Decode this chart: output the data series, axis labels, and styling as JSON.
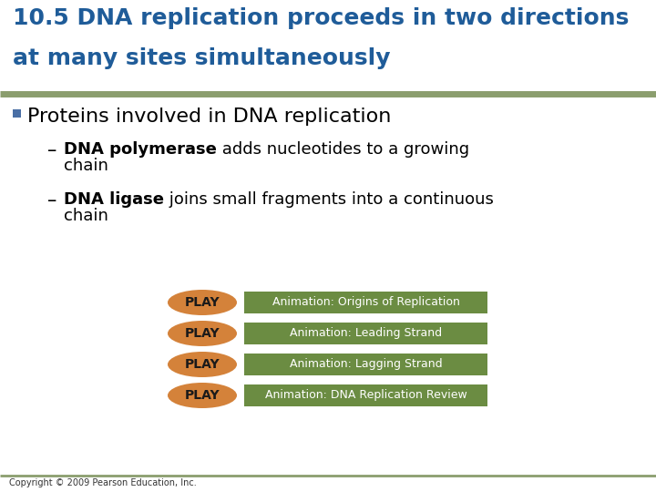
{
  "title_line1": "10.5 DNA replication proceeds in two directions",
  "title_line2": "at many sites simultaneously",
  "title_color": "#1F5C99",
  "title_fontsize": 18,
  "title_bg_color": "#FFFFFF",
  "separator_color": "#8B9E6E",
  "bg_color": "#FFFFFF",
  "bullet_color": "#4A6FA5",
  "bullet_text": "Proteins involved in DNA replication",
  "bullet_fontsize": 16,
  "sub1_bold": "DNA polymerase",
  "sub1_normal": " adds nucleotides to a growing",
  "sub1_line2": "chain",
  "sub2_bold": "DNA ligase",
  "sub2_normal": " joins small fragments into a continuous",
  "sub2_line2": "chain",
  "sub_fontsize": 13,
  "play_buttons": [
    "Animation: Origins of Replication",
    "Animation: Leading Strand",
    "Animation: Lagging Strand",
    "Animation: DNA Replication Review"
  ],
  "play_bg_color": "#D4823A",
  "play_text_color": "#1A1A1A",
  "play_label": "PLAY",
  "play_fontsize": 10,
  "anim_bg_color": "#6B8C42",
  "anim_text_color": "#FFFFFF",
  "anim_fontsize": 9,
  "copyright": "Copyright © 2009 Pearson Education, Inc.",
  "copyright_fontsize": 7,
  "bottom_line_color": "#8B9E6E"
}
